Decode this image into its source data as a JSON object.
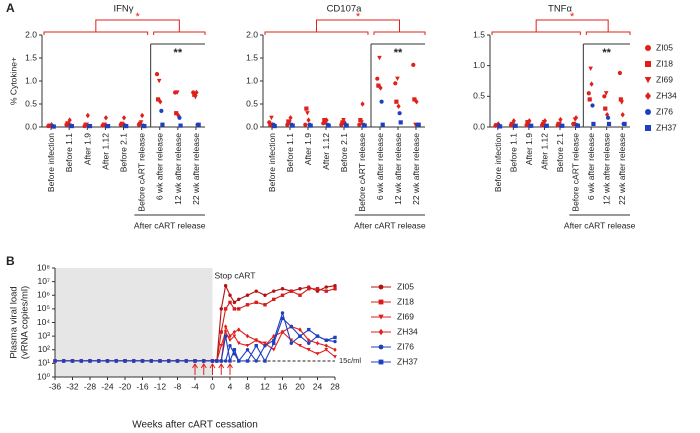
{
  "panel_labels": [
    "A",
    "B"
  ],
  "chart_data": [
    {
      "type": "strip",
      "title": "IFNγ",
      "y_label": "% Cytokine+",
      "group_label": "After cART release",
      "annotations": [
        "*",
        "**"
      ],
      "categories": [
        "Before infection",
        "Before 1.1",
        "After 1.9",
        "After 1.12",
        "Before 2.1",
        "Before cART release",
        "6 wk after release",
        "12 wk after release",
        "22 wk after release"
      ],
      "ylim": [
        0,
        2
      ],
      "yticks": [
        {
          "value": 0,
          "label": "0.0"
        },
        0.5,
        {
          "value": 1,
          "label": "1.0"
        },
        1.5,
        {
          "value": 2,
          "label": "2.0"
        }
      ],
      "series": [
        {
          "color": "#e0201b",
          "marker": "circle",
          "values": [
            0.02,
            0.05,
            0.02,
            0.03,
            0.05,
            0.05,
            1.15,
            0.75,
            0.75
          ]
        },
        {
          "color": "#e0201b",
          "marker": "square",
          "values": [
            0.03,
            0.08,
            0.05,
            0.05,
            0.07,
            0.07,
            0.6,
            0.3,
            0.7
          ]
        },
        {
          "color": "#e0201b",
          "marker": "triangle-down",
          "values": [
            0.02,
            0.05,
            0.05,
            0.05,
            0.05,
            0.1,
            1.0,
            0.75,
            0.65
          ]
        },
        {
          "color": "#e0201b",
          "marker": "diamond",
          "values": [
            0.05,
            0.15,
            0.25,
            0.2,
            0.2,
            0.25,
            0.55,
            0.25,
            0.75
          ]
        },
        {
          "color": "#1f3fbf",
          "marker": "circle",
          "values": [
            0.02,
            0.03,
            0.02,
            0.02,
            0.03,
            0.03,
            0.35,
            0.2,
            0.05
          ]
        },
        {
          "color": "#1f3fbf",
          "marker": "square",
          "values": [
            0.01,
            0.02,
            0.02,
            0.02,
            0.02,
            0.02,
            0.05,
            0.03,
            0.05
          ]
        }
      ]
    },
    {
      "type": "strip",
      "title": "CD107a",
      "group_label": "After cART release",
      "annotations": [
        "*",
        "**"
      ],
      "categories": [
        "Before infection",
        "Before 1.1",
        "After 1.9",
        "After 1.12",
        "Before 2.1",
        "Before cART release",
        "6 wk after release",
        "12 wk after release",
        "22 wk after release"
      ],
      "ylim": [
        0,
        2
      ],
      "yticks": [
        {
          "value": 0,
          "label": "0.0"
        },
        0.5,
        {
          "value": 1,
          "label": "1.0"
        },
        1.5,
        {
          "value": 2,
          "label": "2.0"
        }
      ],
      "series": [
        {
          "color": "#e0201b",
          "marker": "circle",
          "values": [
            0.1,
            0.05,
            0.05,
            0.08,
            0.05,
            0.05,
            1.05,
            0.95,
            1.35
          ]
        },
        {
          "color": "#e0201b",
          "marker": "square",
          "values": [
            0.05,
            0.12,
            0.4,
            0.15,
            0.1,
            0.15,
            0.9,
            0.55,
            0.6
          ]
        },
        {
          "color": "#e0201b",
          "marker": "triangle-down",
          "values": [
            0.2,
            0.1,
            0.3,
            0.1,
            0.15,
            0.1,
            1.5,
            1.05,
            0.05
          ]
        },
        {
          "color": "#e0201b",
          "marker": "diamond",
          "values": [
            0.05,
            0.2,
            0.15,
            0.15,
            0.1,
            0.5,
            0.85,
            0.45,
            0.55
          ]
        },
        {
          "color": "#1f3fbf",
          "marker": "circle",
          "values": [
            0.05,
            0.05,
            0.05,
            0.05,
            0.05,
            0.05,
            0.55,
            0.3,
            0.05
          ]
        },
        {
          "color": "#1f3fbf",
          "marker": "square",
          "values": [
            0.02,
            0.03,
            0.03,
            0.03,
            0.03,
            0.03,
            0.05,
            0.1,
            0.05
          ]
        }
      ]
    },
    {
      "type": "strip",
      "title": "TNFα",
      "group_label": "After cART release",
      "annotations": [
        "*",
        "**"
      ],
      "categories": [
        "Before infection",
        "Before 1.1",
        "After 1.9",
        "After 1.12",
        "Before 2.1",
        "Before cART release",
        "6 wk after release",
        "12 wk after release",
        "22 wk after release"
      ],
      "ylim": [
        0,
        1.5
      ],
      "yticks": [
        {
          "value": 0,
          "label": "0.0"
        },
        0.5,
        {
          "value": 1,
          "label": "1.0"
        },
        1.5
      ],
      "series": [
        {
          "name": "ZI05",
          "color": "#e0201b",
          "marker": "circle",
          "values": [
            0.02,
            0.03,
            0.03,
            0.03,
            0.03,
            0.05,
            0.55,
            0.5,
            0.88
          ]
        },
        {
          "name": "ZI18",
          "color": "#e0201b",
          "marker": "square",
          "values": [
            0.03,
            0.05,
            0.08,
            0.05,
            0.05,
            0.05,
            0.45,
            0.3,
            0.45
          ]
        },
        {
          "name": "ZI69",
          "color": "#e0201b",
          "marker": "triangle-down",
          "values": [
            0.02,
            0.05,
            0.05,
            0.08,
            0.05,
            0.12,
            0.95,
            0.55,
            0.4
          ]
        },
        {
          "name": "ZH34",
          "color": "#e0201b",
          "marker": "diamond",
          "values": [
            0.05,
            0.1,
            0.1,
            0.1,
            0.12,
            0.15,
            0.7,
            0.2,
            0.2
          ]
        },
        {
          "name": "ZI76",
          "color": "#1f3fbf",
          "marker": "circle",
          "values": [
            0.02,
            0.02,
            0.02,
            0.02,
            0.02,
            0.03,
            0.35,
            0.15,
            0.05
          ]
        },
        {
          "name": "ZH37",
          "color": "#1f3fbf",
          "marker": "square",
          "values": [
            0.01,
            0.02,
            0.02,
            0.02,
            0.02,
            0.02,
            0.05,
            0.05,
            0.05
          ]
        }
      ]
    },
    {
      "type": "line",
      "log_y": true,
      "x_label": "Weeks after cART cessation",
      "y_label": [
        "Plasma viral load",
        "(vRNA copies/ml)"
      ],
      "annotations": [
        "Stop cART",
        "15c/ml"
      ],
      "shade_xlim": [
        -36,
        0
      ],
      "threshold": 15,
      "arrows_x": [
        -4,
        -2,
        0,
        2,
        4
      ],
      "xlim": [
        -36,
        28
      ],
      "xticks": [
        -36,
        -32,
        -28,
        -24,
        -20,
        -16,
        -12,
        -8,
        -4,
        0,
        4,
        8,
        12,
        16,
        20,
        24,
        28
      ],
      "ylim": [
        1,
        100000000
      ],
      "yticks": [
        {
          "value": 1,
          "label": "10⁰"
        },
        {
          "value": 10,
          "label": "10¹"
        },
        {
          "value": 100,
          "label": "10²"
        },
        {
          "value": 1000,
          "label": "10³"
        },
        {
          "value": 10000,
          "label": "10⁴"
        },
        {
          "value": 100000,
          "label": "10⁵"
        },
        {
          "value": 1000000,
          "label": "10⁶"
        },
        {
          "value": 10000000,
          "label": "10⁷"
        },
        {
          "value": 100000000,
          "label": "10⁸"
        }
      ],
      "x": [
        -36,
        -34,
        -32,
        -30,
        -28,
        -26,
        -24,
        -22,
        -20,
        -18,
        -16,
        -14,
        -12,
        -10,
        -8,
        -6,
        -4,
        -2,
        0,
        1,
        2,
        3,
        4,
        5,
        6,
        8,
        10,
        12,
        14,
        16,
        18,
        20,
        22,
        24,
        26,
        28
      ],
      "series": [
        {
          "name": "ZI05",
          "color": "#b51010",
          "marker": "circle",
          "values": [
            15,
            15,
            15,
            15,
            15,
            15,
            15,
            15,
            15,
            15,
            15,
            15,
            15,
            15,
            15,
            15,
            15,
            15,
            15,
            15,
            100000,
            5000000,
            1000000,
            300000,
            500000,
            1000000,
            2000000,
            1000000,
            2000000,
            3000000,
            2000000,
            3000000,
            4000000,
            2000000,
            4000000,
            5000000
          ]
        },
        {
          "name": "ZI18",
          "color": "#d41c1c",
          "marker": "square",
          "values": [
            15,
            15,
            15,
            15,
            15,
            15,
            15,
            15,
            15,
            15,
            15,
            15,
            15,
            15,
            15,
            15,
            15,
            15,
            15,
            15,
            2000,
            100000,
            300000,
            100000,
            100000,
            200000,
            300000,
            200000,
            500000,
            1000000,
            2000000,
            1000000,
            3000000,
            3000000,
            2000000,
            3000000
          ]
        },
        {
          "name": "ZI69",
          "color": "#e0201b",
          "marker": "triangle-down",
          "values": [
            15,
            15,
            15,
            15,
            15,
            15,
            15,
            15,
            15,
            15,
            15,
            15,
            15,
            15,
            15,
            15,
            15,
            15,
            15,
            15,
            200,
            2000,
            500,
            1000,
            300,
            200,
            500,
            300,
            100,
            2000,
            500,
            200,
            100,
            50,
            100,
            30
          ]
        },
        {
          "name": "ZH34",
          "color": "#e0201b",
          "marker": "diamond",
          "values": [
            15,
            15,
            15,
            15,
            15,
            15,
            15,
            15,
            15,
            15,
            15,
            15,
            15,
            15,
            15,
            15,
            15,
            15,
            15,
            15,
            15,
            5000,
            1000,
            2000,
            3000,
            1000,
            500,
            200,
            1000,
            2000,
            5000,
            3000,
            500,
            300,
            200,
            100
          ]
        },
        {
          "name": "ZI76",
          "color": "#1f3fbf",
          "marker": "circle",
          "values": [
            15,
            15,
            15,
            15,
            15,
            15,
            15,
            15,
            15,
            15,
            15,
            15,
            15,
            15,
            15,
            15,
            15,
            15,
            15,
            15,
            15,
            15,
            200,
            50,
            15,
            100,
            15,
            200,
            500,
            50000,
            300,
            1000,
            300,
            1000,
            500,
            400
          ]
        },
        {
          "name": "ZH37",
          "color": "#1f3fbf",
          "marker": "square",
          "values": [
            15,
            15,
            15,
            15,
            15,
            15,
            15,
            15,
            15,
            15,
            15,
            15,
            15,
            15,
            15,
            15,
            15,
            15,
            15,
            15,
            15,
            1000,
            15,
            100,
            15,
            15,
            200,
            15,
            300,
            20000,
            5000,
            1000,
            3000,
            1000,
            500,
            800
          ]
        }
      ]
    }
  ]
}
